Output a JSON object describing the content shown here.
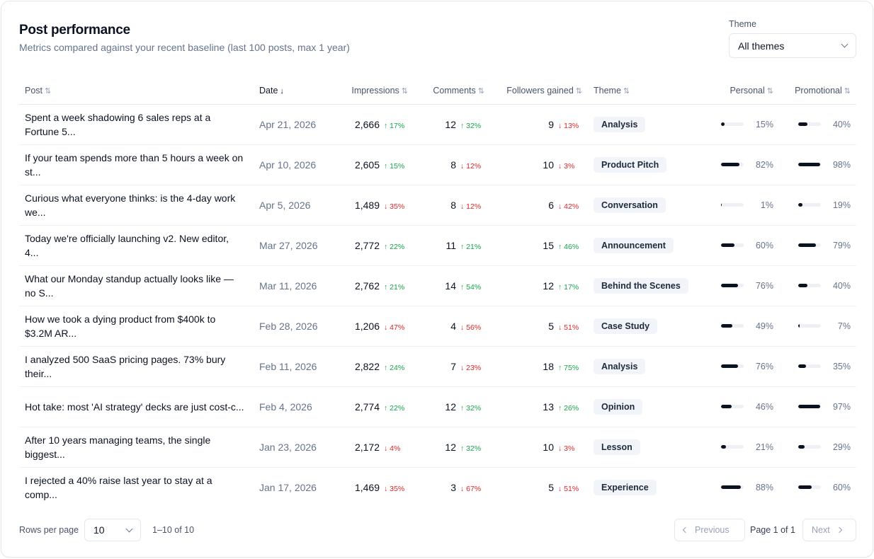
{
  "header": {
    "title": "Post performance",
    "subtitle": "Metrics compared against your recent baseline (last 100 posts, max 1 year)",
    "theme_label": "Theme",
    "theme_value": "All themes"
  },
  "columns": {
    "post": "Post",
    "date": "Date",
    "impressions": "Impressions",
    "comments": "Comments",
    "followers": "Followers gained",
    "theme": "Theme",
    "personal": "Personal",
    "promotional": "Promotional"
  },
  "icons": {
    "sort": "sort-arrows-icon",
    "sort_desc": "arrow-down-icon",
    "chevron": "chevron-down-icon"
  },
  "colors": {
    "up": "#16a34a",
    "down": "#dc2626",
    "bar": "#0b1220"
  },
  "rows": [
    {
      "post": "Spent a week shadowing 6 sales reps at a Fortune 5...",
      "date": "Apr 21, 2026",
      "impressions": "2,666",
      "imp_delta": "↑ 17%",
      "imp_dir": "up",
      "comments": "12",
      "com_delta": "↑ 32%",
      "com_dir": "up",
      "followers": "9",
      "fol_delta": "↓ 13%",
      "fol_dir": "down",
      "theme": "Analysis",
      "personal": 15,
      "personal_label": "15%",
      "promotional": 40,
      "promotional_label": "40%"
    },
    {
      "post": "If your team spends more than 5 hours a week on st...",
      "date": "Apr 10, 2026",
      "impressions": "2,605",
      "imp_delta": "↑ 15%",
      "imp_dir": "up",
      "comments": "8",
      "com_delta": "↓ 12%",
      "com_dir": "down",
      "followers": "10",
      "fol_delta": "↓ 3%",
      "fol_dir": "down",
      "theme": "Product Pitch",
      "personal": 82,
      "personal_label": "82%",
      "promotional": 98,
      "promotional_label": "98%"
    },
    {
      "post": "Curious what everyone thinks: is the 4-day work we...",
      "date": "Apr 5, 2026",
      "impressions": "1,489",
      "imp_delta": "↓ 35%",
      "imp_dir": "down",
      "comments": "8",
      "com_delta": "↓ 12%",
      "com_dir": "down",
      "followers": "6",
      "fol_delta": "↓ 42%",
      "fol_dir": "down",
      "theme": "Conversation",
      "personal": 1,
      "personal_label": "1%",
      "promotional": 19,
      "promotional_label": "19%"
    },
    {
      "post": "Today we're officially launching v2. New editor, 4...",
      "date": "Mar 27, 2026",
      "impressions": "2,772",
      "imp_delta": "↑ 22%",
      "imp_dir": "up",
      "comments": "11",
      "com_delta": "↑ 21%",
      "com_dir": "up",
      "followers": "15",
      "fol_delta": "↑ 46%",
      "fol_dir": "up",
      "theme": "Announcement",
      "personal": 60,
      "personal_label": "60%",
      "promotional": 79,
      "promotional_label": "79%"
    },
    {
      "post": "What our Monday standup actually looks like — no S...",
      "date": "Mar 11, 2026",
      "impressions": "2,762",
      "imp_delta": "↑ 21%",
      "imp_dir": "up",
      "comments": "14",
      "com_delta": "↑ 54%",
      "com_dir": "up",
      "followers": "12",
      "fol_delta": "↑ 17%",
      "fol_dir": "up",
      "theme": "Behind the Scenes",
      "personal": 76,
      "personal_label": "76%",
      "promotional": 40,
      "promotional_label": "40%"
    },
    {
      "post": "How we took a dying product from $400k to $3.2M AR...",
      "date": "Feb 28, 2026",
      "impressions": "1,206",
      "imp_delta": "↓ 47%",
      "imp_dir": "down",
      "comments": "4",
      "com_delta": "↓ 56%",
      "com_dir": "down",
      "followers": "5",
      "fol_delta": "↓ 51%",
      "fol_dir": "down",
      "theme": "Case Study",
      "personal": 49,
      "personal_label": "49%",
      "promotional": 7,
      "promotional_label": "7%"
    },
    {
      "post": "I analyzed 500 SaaS pricing pages. 73% bury their...",
      "date": "Feb 11, 2026",
      "impressions": "2,822",
      "imp_delta": "↑ 24%",
      "imp_dir": "up",
      "comments": "7",
      "com_delta": "↓ 23%",
      "com_dir": "down",
      "followers": "18",
      "fol_delta": "↑ 75%",
      "fol_dir": "up",
      "theme": "Analysis",
      "personal": 76,
      "personal_label": "76%",
      "promotional": 35,
      "promotional_label": "35%"
    },
    {
      "post": "Hot take: most 'AI strategy' decks are just cost-c...",
      "date": "Feb 4, 2026",
      "impressions": "2,774",
      "imp_delta": "↑ 22%",
      "imp_dir": "up",
      "comments": "12",
      "com_delta": "↑ 32%",
      "com_dir": "up",
      "followers": "13",
      "fol_delta": "↑ 26%",
      "fol_dir": "up",
      "theme": "Opinion",
      "personal": 46,
      "personal_label": "46%",
      "promotional": 97,
      "promotional_label": "97%"
    },
    {
      "post": "After 10 years managing teams, the single biggest...",
      "date": "Jan 23, 2026",
      "impressions": "2,172",
      "imp_delta": "↓ 4%",
      "imp_dir": "down",
      "comments": "12",
      "com_delta": "↑ 32%",
      "com_dir": "up",
      "followers": "10",
      "fol_delta": "↓ 3%",
      "fol_dir": "down",
      "theme": "Lesson",
      "personal": 21,
      "personal_label": "21%",
      "promotional": 29,
      "promotional_label": "29%"
    },
    {
      "post": "I rejected a 40% raise last year to stay at a comp...",
      "date": "Jan 17, 2026",
      "impressions": "1,469",
      "imp_delta": "↓ 35%",
      "imp_dir": "down",
      "comments": "3",
      "com_delta": "↓ 67%",
      "com_dir": "down",
      "followers": "5",
      "fol_delta": "↓ 51%",
      "fol_dir": "down",
      "theme": "Experience",
      "personal": 88,
      "personal_label": "88%",
      "promotional": 60,
      "promotional_label": "60%"
    }
  ],
  "footer": {
    "rows_per_page_label": "Rows per page",
    "rows_per_page_value": "10",
    "range": "1–10 of 10",
    "previous": "Previous",
    "page_info": "Page 1 of 1",
    "next": "Next"
  }
}
